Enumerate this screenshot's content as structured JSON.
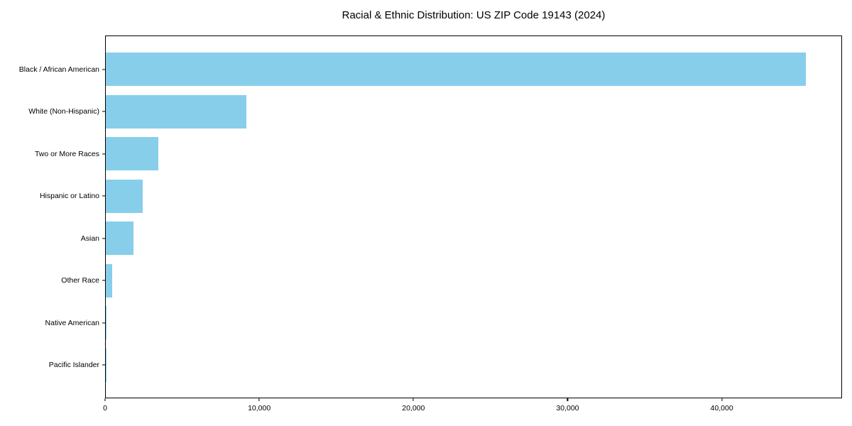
{
  "figure": {
    "background": "#ffffff",
    "text_color": "#000000",
    "spine_color": "#000000"
  },
  "chart_data": {
    "type": "bar",
    "orientation": "horizontal",
    "title": "Racial & Ethnic Distribution: US ZIP Code 19143 (2024)",
    "xlabel": "",
    "ylabel": "",
    "categories": [
      "Black / African American",
      "White (Non-Hispanic)",
      "Two or More Races",
      "Hispanic or Latino",
      "Asian",
      "Other Race",
      "Native American",
      "Pacific Islander"
    ],
    "values": [
      45500,
      9150,
      3400,
      2400,
      1780,
      400,
      50,
      20
    ],
    "bar_color": "#87CEEB",
    "xlim": [
      0,
      47800
    ],
    "x_ticks": [
      0,
      10000,
      20000,
      30000,
      40000
    ],
    "x_tick_labels": [
      "0",
      "10,000",
      "20,000",
      "30,000",
      "40,000"
    ],
    "grid": false,
    "legend": null
  }
}
